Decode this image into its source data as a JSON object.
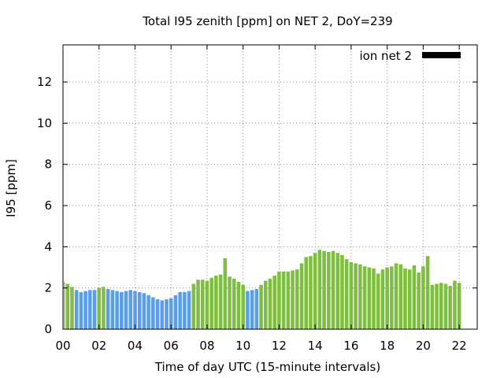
{
  "chart_data": {
    "type": "bar",
    "title": "Total I95 zenith [ppm] on NET 2, DoY=239",
    "xlabel": "Time of day UTC (15-minute intervals)",
    "ylabel": "I95 [ppm]",
    "xlim": [
      0,
      23
    ],
    "ylim": [
      0,
      13.8
    ],
    "xticks": [
      0,
      2,
      4,
      6,
      8,
      10,
      12,
      14,
      16,
      18,
      20,
      22
    ],
    "xtick_labels": [
      "00",
      "02",
      "04",
      "06",
      "08",
      "10",
      "12",
      "14",
      "16",
      "18",
      "20",
      "22"
    ],
    "yticks": [
      0,
      2,
      4,
      6,
      8,
      10,
      12
    ],
    "ytick_labels": [
      "0",
      "2",
      "4",
      "6",
      "8",
      "10",
      "12"
    ],
    "grid": true,
    "legend_position": "top-right",
    "series": [
      {
        "name": "ion net 2",
        "color": "#000000",
        "values": [
          2.3,
          2.2,
          2.05,
          1.9,
          1.8,
          1.85,
          1.9,
          1.9,
          2.0,
          2.05,
          1.95,
          1.9,
          1.85,
          1.8,
          1.85,
          1.9,
          1.85,
          1.8,
          1.75,
          1.65,
          1.55,
          1.45,
          1.4,
          1.45,
          1.5,
          1.65,
          1.8,
          1.8,
          1.85,
          2.2,
          2.4,
          2.4,
          2.35,
          2.5,
          2.6,
          2.65,
          3.45,
          2.55,
          2.45,
          2.3,
          2.15,
          1.85,
          1.9,
          1.95,
          2.15,
          2.35,
          2.45,
          2.6,
          2.8,
          2.8,
          2.8,
          2.85,
          2.9,
          3.2,
          3.5,
          3.55,
          3.7,
          3.85,
          3.8,
          3.75,
          3.8,
          3.7,
          3.6,
          3.4,
          3.25,
          3.2,
          3.15,
          3.05,
          3.0,
          2.95,
          2.7,
          2.9,
          3.0,
          3.05,
          3.2,
          3.15,
          2.95,
          2.9,
          3.1,
          2.75,
          3.05,
          3.55,
          2.15,
          2.2,
          2.25,
          2.2,
          2.1,
          2.35,
          2.25
        ],
        "bar_colors": [
          "#7fbf3f",
          "#7fbf3f",
          "#7fbf3f",
          "#5b9ee8",
          "#5b9ee8",
          "#5b9ee8",
          "#5b9ee8",
          "#5b9ee8",
          "#7fbf3f",
          "#7fbf3f",
          "#5b9ee8",
          "#5b9ee8",
          "#5b9ee8",
          "#5b9ee8",
          "#5b9ee8",
          "#5b9ee8",
          "#5b9ee8",
          "#5b9ee8",
          "#5b9ee8",
          "#5b9ee8",
          "#5b9ee8",
          "#5b9ee8",
          "#5b9ee8",
          "#5b9ee8",
          "#5b9ee8",
          "#5b9ee8",
          "#5b9ee8",
          "#5b9ee8",
          "#5b9ee8",
          "#7fbf3f",
          "#7fbf3f",
          "#7fbf3f",
          "#7fbf3f",
          "#7fbf3f",
          "#7fbf3f",
          "#7fbf3f",
          "#7fbf3f",
          "#7fbf3f",
          "#7fbf3f",
          "#7fbf3f",
          "#7fbf3f",
          "#5b9ee8",
          "#5b9ee8",
          "#5b9ee8",
          "#7fbf3f",
          "#7fbf3f",
          "#7fbf3f",
          "#7fbf3f",
          "#7fbf3f",
          "#7fbf3f",
          "#7fbf3f",
          "#7fbf3f",
          "#7fbf3f",
          "#7fbf3f",
          "#7fbf3f",
          "#7fbf3f",
          "#7fbf3f",
          "#7fbf3f",
          "#7fbf3f",
          "#7fbf3f",
          "#7fbf3f",
          "#7fbf3f",
          "#7fbf3f",
          "#7fbf3f",
          "#7fbf3f",
          "#7fbf3f",
          "#7fbf3f",
          "#7fbf3f",
          "#7fbf3f",
          "#7fbf3f",
          "#7fbf3f",
          "#7fbf3f",
          "#7fbf3f",
          "#7fbf3f",
          "#7fbf3f",
          "#7fbf3f",
          "#7fbf3f",
          "#7fbf3f",
          "#7fbf3f",
          "#7fbf3f",
          "#7fbf3f",
          "#7fbf3f",
          "#7fbf3f",
          "#7fbf3f",
          "#7fbf3f",
          "#7fbf3f",
          "#7fbf3f",
          "#7fbf3f",
          "#7fbf3f"
        ]
      }
    ]
  }
}
